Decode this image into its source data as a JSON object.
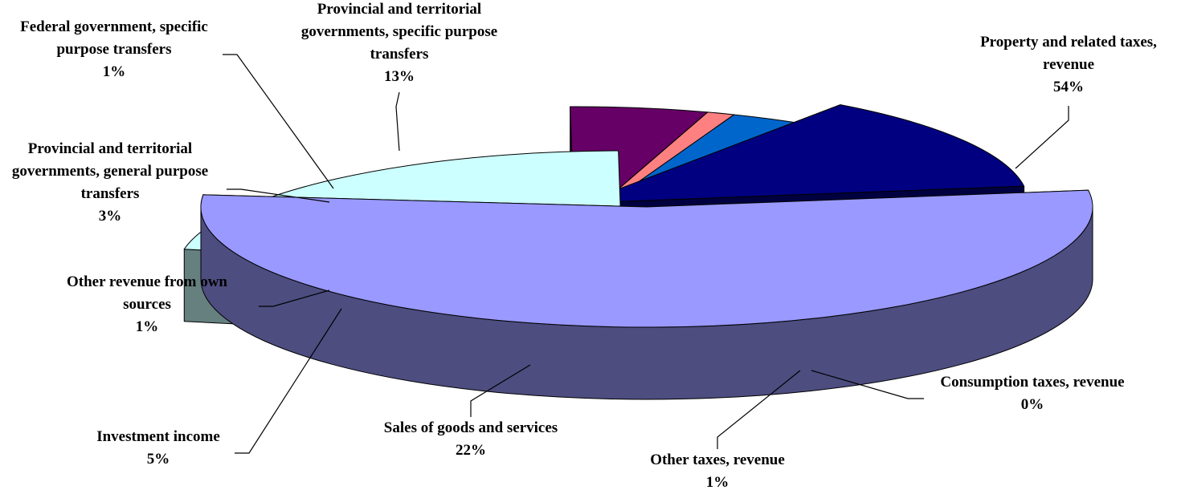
{
  "chart_data": {
    "type": "pie",
    "style": "3d-exploded",
    "slices": [
      {
        "label_lines": [
          "Property and related taxes,",
          "revenue"
        ],
        "pct_label": "54%",
        "value": 54,
        "top_color": "#9999FF",
        "side_color": "#4D4D80"
      },
      {
        "label_lines": [
          "Consumption taxes, revenue"
        ],
        "pct_label": "0%",
        "value": 0.3,
        "top_color": "#FFFFCC",
        "side_color": "#808066"
      },
      {
        "label_lines": [
          "Other taxes, revenue"
        ],
        "pct_label": "1%",
        "value": 1,
        "top_color": "#660066",
        "side_color": "#330033"
      },
      {
        "label_lines": [
          "Sales of goods and services"
        ],
        "pct_label": "22%",
        "value": 22,
        "top_color": "#CCFFFF",
        "side_color": "#668080"
      },
      {
        "label_lines": [
          "Investment income"
        ],
        "pct_label": "5%",
        "value": 5,
        "top_color": "#660066",
        "side_color": "#330033"
      },
      {
        "label_lines": [
          "Other revenue from own",
          "sources"
        ],
        "pct_label": "1%",
        "value": 1,
        "top_color": "#FF8080",
        "side_color": "#804040"
      },
      {
        "label_lines": [
          "Provincial and territorial",
          "governments, general purpose",
          "transfers"
        ],
        "pct_label": "3%",
        "value": 3,
        "top_color": "#0066CC",
        "side_color": "#003366"
      },
      {
        "label_lines": [
          "Federal government, specific",
          "purpose transfers"
        ],
        "pct_label": "1%",
        "value": 1,
        "top_color": "#CCCCFF",
        "side_color": "#666680"
      },
      {
        "label_lines": [
          "Provincial and territorial",
          "governments, specific purpose",
          "transfers"
        ],
        "pct_label": "13%",
        "value": 13,
        "top_color": "#000080",
        "side_color": "#000040"
      }
    ]
  }
}
